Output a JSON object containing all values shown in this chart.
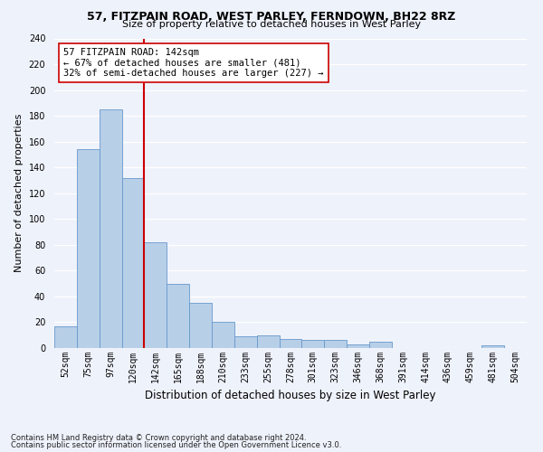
{
  "title1": "57, FITZPAIN ROAD, WEST PARLEY, FERNDOWN, BH22 8RZ",
  "title2": "Size of property relative to detached houses in West Parley",
  "xlabel": "Distribution of detached houses by size in West Parley",
  "ylabel": "Number of detached properties",
  "bar_values": [
    17,
    154,
    185,
    132,
    82,
    50,
    35,
    20,
    9,
    10,
    7,
    6,
    6,
    3,
    5,
    0,
    0,
    0,
    0,
    2,
    0
  ],
  "bin_labels": [
    "52sqm",
    "75sqm",
    "97sqm",
    "120sqm",
    "142sqm",
    "165sqm",
    "188sqm",
    "210sqm",
    "233sqm",
    "255sqm",
    "278sqm",
    "301sqm",
    "323sqm",
    "346sqm",
    "368sqm",
    "391sqm",
    "414sqm",
    "436sqm",
    "459sqm",
    "481sqm",
    "504sqm"
  ],
  "bar_color": "#b8cfe8",
  "bar_edge_color": "#6699cc",
  "vline_color": "#cc0000",
  "vline_x_index": 4,
  "annotation_text": "57 FITZPAIN ROAD: 142sqm\n← 67% of detached houses are smaller (481)\n32% of semi-detached houses are larger (227) →",
  "annotation_box_color": "#ffffff",
  "annotation_box_edge": "#cc0000",
  "ylim": [
    0,
    240
  ],
  "yticks": [
    0,
    20,
    40,
    60,
    80,
    100,
    120,
    140,
    160,
    180,
    200,
    220,
    240
  ],
  "footer1": "Contains HM Land Registry data © Crown copyright and database right 2024.",
  "footer2": "Contains public sector information licensed under the Open Government Licence v3.0.",
  "bg_color": "#eef2fb",
  "grid_color": "#ffffff",
  "title_fontsize": 9,
  "subtitle_fontsize": 8,
  "ylabel_fontsize": 8,
  "xlabel_fontsize": 8.5,
  "tick_fontsize": 7,
  "annot_fontsize": 7.5,
  "footer_fontsize": 6
}
